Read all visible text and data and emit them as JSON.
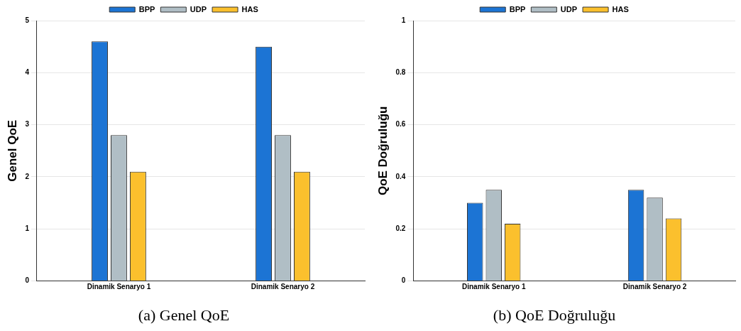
{
  "chart_data": [
    {
      "type": "bar",
      "title": "(a) Genel QoE",
      "ylabel": "Genel QoE",
      "categories": [
        "Dinamik Senaryo 1",
        "Dinamik Senaryo 2"
      ],
      "series": [
        {
          "name": "BPP",
          "color": "#1c74d4",
          "values": [
            4.6,
            4.5
          ]
        },
        {
          "name": "UDP",
          "color": "#b0bec5",
          "values": [
            2.8,
            2.8
          ]
        },
        {
          "name": "HAS",
          "color": "#fbc02d",
          "values": [
            2.1,
            2.1
          ]
        }
      ],
      "ylim": [
        0,
        5
      ],
      "yticks": [
        0,
        1,
        2,
        3,
        4,
        5
      ],
      "grid": "y",
      "legend": "top"
    },
    {
      "type": "bar",
      "title": "(b) QoE Doğruluğu",
      "ylabel": "QoE Doğruluğu",
      "categories": [
        "Dinamik Senaryo 1",
        "Dinamik Senaryo 2"
      ],
      "series": [
        {
          "name": "BPP",
          "color": "#1c74d4",
          "values": [
            0.3,
            0.35
          ]
        },
        {
          "name": "UDP",
          "color": "#b0bec5",
          "values": [
            0.35,
            0.32
          ]
        },
        {
          "name": "HAS",
          "color": "#fbc02d",
          "values": [
            0.22,
            0.24
          ]
        }
      ],
      "ylim": [
        0,
        1
      ],
      "yticks": [
        0,
        0.2,
        0.4,
        0.6,
        0.8,
        1
      ],
      "grid": "y",
      "legend": "top"
    }
  ]
}
